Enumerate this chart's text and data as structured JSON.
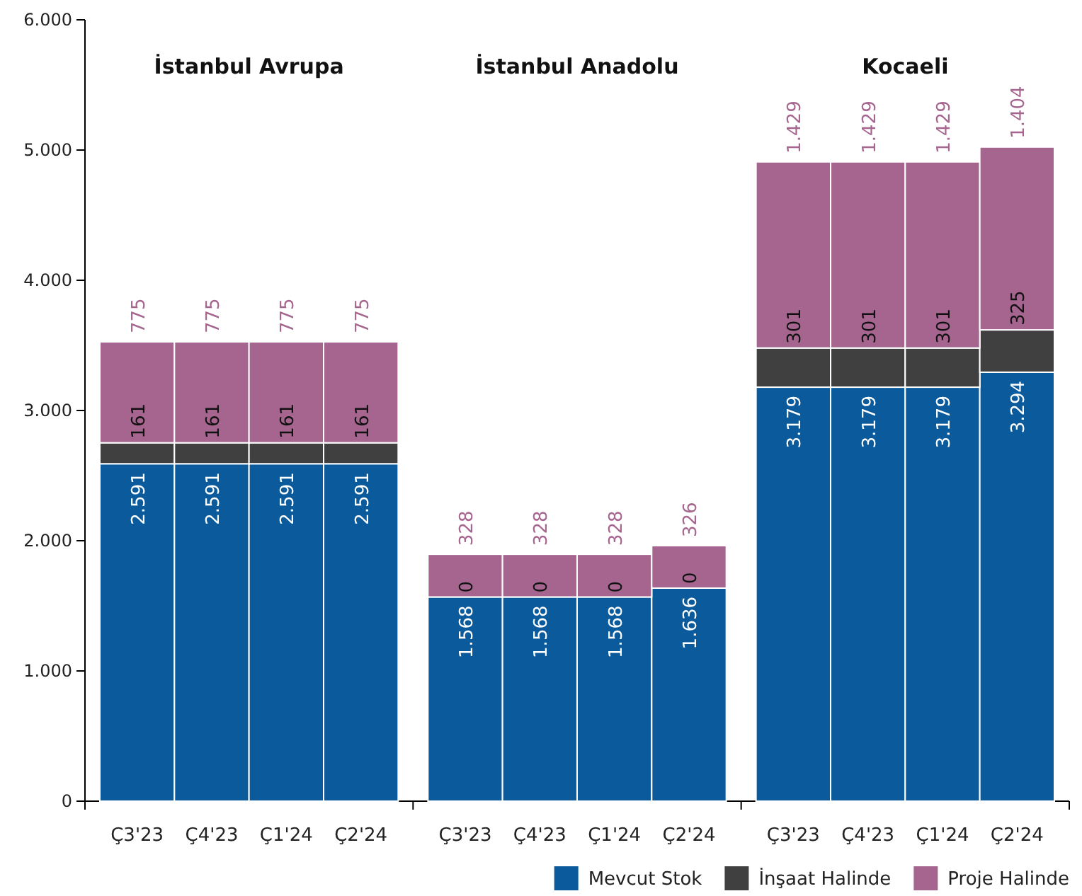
{
  "chart_data": {
    "type": "bar",
    "stacked": true,
    "categories": [
      "Ç3'23",
      "Ç4'23",
      "Ç1'24",
      "Ç2'24",
      "Ç3'23",
      "Ç4'23",
      "Ç1'24",
      "Ç2'24",
      "Ç3'23",
      "Ç4'23",
      "Ç1'24",
      "Ç2'24"
    ],
    "annotations": [
      "İstanbul Avrupa",
      "İstanbul Anadolu",
      "Kocaeli"
    ],
    "series": [
      {
        "name": "Mevcut Stok",
        "color": "#0a5a9c",
        "values": [
          2591,
          2591,
          2591,
          2591,
          1568,
          1568,
          1568,
          1636,
          3179,
          3179,
          3179,
          3294
        ],
        "value_labels": [
          "2.591",
          "2.591",
          "2.591",
          "2.591",
          "1.568",
          "1.568",
          "1.568",
          "1.636",
          "3.179",
          "3.179",
          "3.179",
          "3.294"
        ]
      },
      {
        "name": "İnşaat Halinde",
        "color": "#404040",
        "values": [
          161,
          161,
          161,
          161,
          0,
          0,
          0,
          0,
          301,
          301,
          301,
          325
        ],
        "value_labels": [
          "161",
          "161",
          "161",
          "161",
          "0",
          "0",
          "0",
          "0",
          "301",
          "301",
          "301",
          "325"
        ]
      },
      {
        "name": "Proje Halinde",
        "color": "#a5658f",
        "values": [
          775,
          775,
          775,
          775,
          328,
          328,
          328,
          326,
          1429,
          1429,
          1429,
          1404
        ],
        "value_labels": [
          "775",
          "775",
          "775",
          "775",
          "328",
          "328",
          "328",
          "326",
          "1.429",
          "1.429",
          "1.429",
          "1.404"
        ]
      }
    ],
    "ylim": [
      0,
      6000
    ],
    "yticks": [
      {
        "value": 0,
        "label": "0"
      },
      {
        "value": 1000,
        "label": "1.000"
      },
      {
        "value": 2000,
        "label": "2.000"
      },
      {
        "value": 3000,
        "label": "3.000"
      },
      {
        "value": 4000,
        "label": "4.000"
      },
      {
        "value": 5000,
        "label": "5.000"
      },
      {
        "value": 6000,
        "label": "6.000"
      }
    ],
    "grid": false,
    "legend": "bottom right"
  }
}
